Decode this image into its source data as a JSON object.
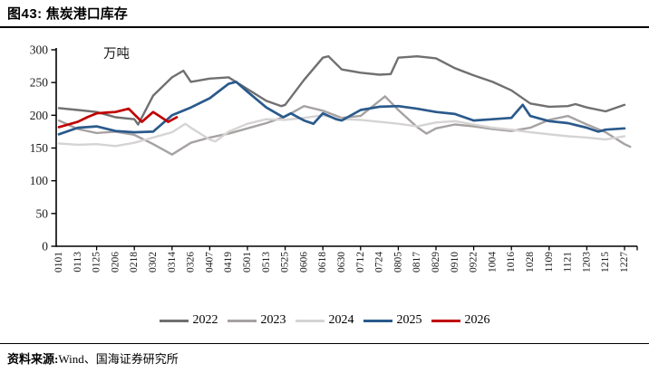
{
  "header": {
    "figure_label": "图43:",
    "title": "焦炭港口库存"
  },
  "chart_data": {
    "type": "line",
    "title": "焦炭港口库存",
    "unit_label": "万吨",
    "ylim": [
      0,
      300
    ],
    "yticks": [
      0,
      50,
      100,
      150,
      200,
      250,
      300
    ],
    "grid": false,
    "legend_position": "bottom",
    "categories": [
      "0101",
      "0113",
      "0125",
      "0206",
      "0218",
      "0302",
      "0314",
      "0326",
      "0407",
      "0419",
      "0501",
      "0513",
      "0525",
      "0606",
      "0618",
      "0630",
      "0712",
      "0724",
      "0805",
      "0817",
      "0829",
      "0910",
      "0922",
      "1004",
      "1016",
      "1028",
      "1109",
      "1121",
      "1203",
      "1215",
      "1227"
    ],
    "series": [
      {
        "name": "2022",
        "color": "#716f6f",
        "width": 2.4,
        "points": [
          [
            0,
            211
          ],
          [
            1,
            208
          ],
          [
            2,
            205
          ],
          [
            3,
            197
          ],
          [
            4,
            194
          ],
          [
            4.2,
            186
          ],
          [
            5,
            230
          ],
          [
            6,
            258
          ],
          [
            6.6,
            268
          ],
          [
            7,
            251
          ],
          [
            8,
            256
          ],
          [
            9,
            258
          ],
          [
            10,
            240
          ],
          [
            11,
            222
          ],
          [
            11.8,
            214
          ],
          [
            12,
            216
          ],
          [
            13,
            254
          ],
          [
            14,
            288
          ],
          [
            14.3,
            290
          ],
          [
            15,
            270
          ],
          [
            16,
            265
          ],
          [
            17,
            262
          ],
          [
            17.6,
            263
          ],
          [
            18,
            288
          ],
          [
            19,
            290
          ],
          [
            20,
            287
          ],
          [
            21,
            272
          ],
          [
            22,
            261
          ],
          [
            23,
            251
          ],
          [
            24,
            238
          ],
          [
            25,
            218
          ],
          [
            26,
            213
          ],
          [
            27,
            214
          ],
          [
            27.4,
            217
          ],
          [
            28,
            212
          ],
          [
            29,
            206
          ],
          [
            30,
            216
          ]
        ]
      },
      {
        "name": "2023",
        "color": "#a6a2a2",
        "width": 2.4,
        "points": [
          [
            0,
            192
          ],
          [
            1,
            179
          ],
          [
            2,
            173
          ],
          [
            3,
            175
          ],
          [
            4,
            170
          ],
          [
            5,
            156
          ],
          [
            6,
            140
          ],
          [
            7,
            158
          ],
          [
            8,
            166
          ],
          [
            9,
            172
          ],
          [
            10,
            180
          ],
          [
            11,
            188
          ],
          [
            12,
            198
          ],
          [
            13,
            214
          ],
          [
            14,
            207
          ],
          [
            15,
            196
          ],
          [
            16,
            199
          ],
          [
            17.3,
            229
          ],
          [
            18,
            208
          ],
          [
            19,
            182
          ],
          [
            19.5,
            172
          ],
          [
            20,
            180
          ],
          [
            21,
            186
          ],
          [
            22,
            183
          ],
          [
            23,
            179
          ],
          [
            24,
            176
          ],
          [
            25,
            181
          ],
          [
            26,
            193
          ],
          [
            27,
            199
          ],
          [
            28,
            186
          ],
          [
            29,
            174
          ],
          [
            30,
            156
          ],
          [
            30.3,
            152
          ]
        ]
      },
      {
        "name": "2024",
        "color": "#d6d3d3",
        "width": 2.4,
        "points": [
          [
            0,
            157
          ],
          [
            1,
            155
          ],
          [
            2,
            156
          ],
          [
            3,
            153
          ],
          [
            4,
            158
          ],
          [
            5,
            166
          ],
          [
            6,
            174
          ],
          [
            6.7,
            187
          ],
          [
            7,
            181
          ],
          [
            8,
            163
          ],
          [
            8.3,
            160
          ],
          [
            9,
            175
          ],
          [
            10,
            187
          ],
          [
            11,
            194
          ],
          [
            12,
            193
          ],
          [
            13,
            196
          ],
          [
            14,
            200
          ],
          [
            15,
            194
          ],
          [
            16,
            193
          ],
          [
            17,
            190
          ],
          [
            18,
            187
          ],
          [
            19,
            183
          ],
          [
            20,
            189
          ],
          [
            21,
            191
          ],
          [
            22,
            186
          ],
          [
            23,
            181
          ],
          [
            24,
            178
          ],
          [
            25,
            174
          ],
          [
            26,
            171
          ],
          [
            27,
            168
          ],
          [
            28,
            166
          ],
          [
            29,
            163
          ],
          [
            30,
            168
          ]
        ]
      },
      {
        "name": "2025",
        "color": "#2a5a8c",
        "width": 2.7,
        "points": [
          [
            0,
            171
          ],
          [
            1,
            181
          ],
          [
            2,
            183
          ],
          [
            3,
            176
          ],
          [
            4,
            174
          ],
          [
            5,
            175
          ],
          [
            6,
            200
          ],
          [
            7,
            212
          ],
          [
            8,
            226
          ],
          [
            9,
            248
          ],
          [
            9.4,
            251
          ],
          [
            10,
            236
          ],
          [
            11,
            212
          ],
          [
            11.9,
            197
          ],
          [
            12.3,
            203
          ],
          [
            13,
            192
          ],
          [
            13.5,
            187
          ],
          [
            14,
            203
          ],
          [
            14.7,
            194
          ],
          [
            15,
            192
          ],
          [
            16,
            208
          ],
          [
            17,
            213
          ],
          [
            18,
            214
          ],
          [
            19,
            210
          ],
          [
            20,
            205
          ],
          [
            21,
            202
          ],
          [
            22,
            192
          ],
          [
            23,
            194
          ],
          [
            24,
            196
          ],
          [
            24.6,
            216
          ],
          [
            25,
            199
          ],
          [
            26,
            191
          ],
          [
            27,
            188
          ],
          [
            28,
            181
          ],
          [
            28.6,
            175
          ],
          [
            29,
            178
          ],
          [
            30,
            180
          ]
        ]
      },
      {
        "name": "2026",
        "color": "#c00000",
        "width": 2.7,
        "points": [
          [
            0,
            182
          ],
          [
            0.5,
            186
          ],
          [
            1,
            190
          ],
          [
            1.5,
            197
          ],
          [
            2,
            203
          ],
          [
            2.5,
            204
          ],
          [
            3,
            205
          ],
          [
            3.7,
            210
          ],
          [
            4.4,
            190
          ],
          [
            5,
            205
          ],
          [
            5.8,
            190
          ],
          [
            6.25,
            197
          ]
        ]
      }
    ]
  },
  "footer": {
    "source_label": "资料来源:",
    "source_text": "Wind、国海证券研究所"
  }
}
